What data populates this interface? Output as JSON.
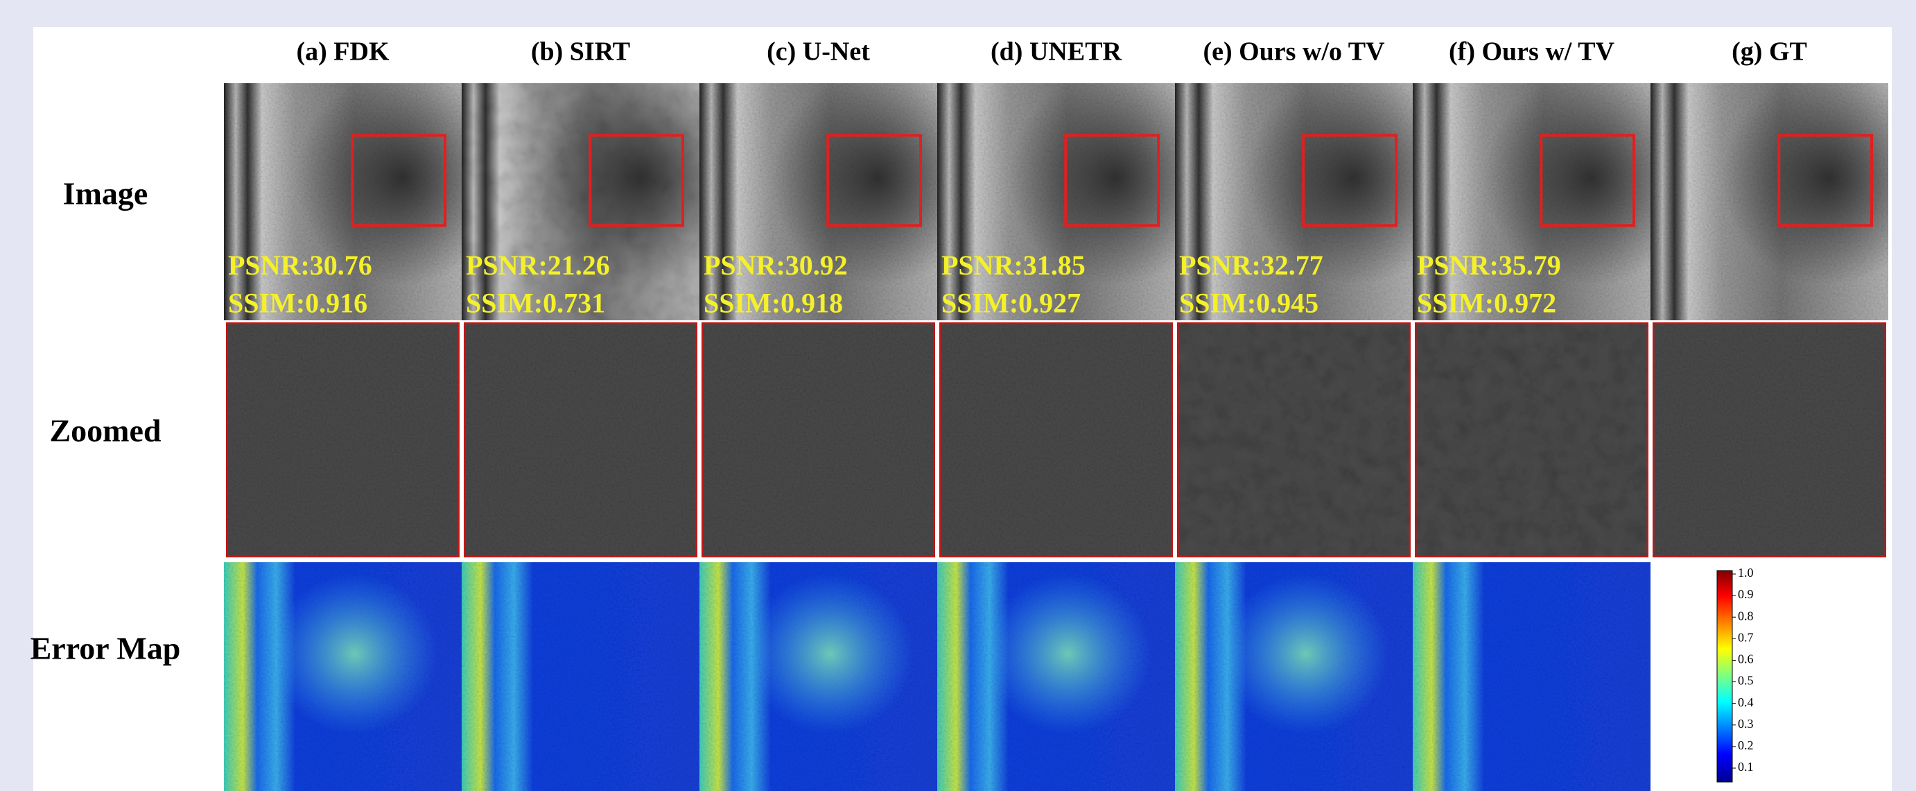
{
  "columns": [
    {
      "title": "(a) FDK",
      "psnr": "PSNR:30.76",
      "ssim": "SSIM:0.916"
    },
    {
      "title": "(b) SIRT",
      "psnr": "PSNR:21.26",
      "ssim": "SSIM:0.731"
    },
    {
      "title": "(c) U-Net",
      "psnr": "PSNR:30.92",
      "ssim": "SSIM:0.918"
    },
    {
      "title": "(d) UNETR",
      "psnr": "PSNR:31.85",
      "ssim": "SSIM:0.927"
    },
    {
      "title": "(e) Ours w/o TV",
      "psnr": "PSNR:32.77",
      "ssim": "SSIM:0.945"
    },
    {
      "title": "(f) Ours w/ TV",
      "psnr": "PSNR:35.79",
      "ssim": "SSIM:0.972"
    },
    {
      "title": "(g) GT"
    }
  ],
  "rows": [
    "Image",
    "Zoomed",
    "Error Map"
  ],
  "colorbar": {
    "ticks": [
      "1.0",
      "0.9",
      "0.8",
      "0.7",
      "0.6",
      "0.5",
      "0.4",
      "0.3",
      "0.2",
      "0.1"
    ]
  }
}
